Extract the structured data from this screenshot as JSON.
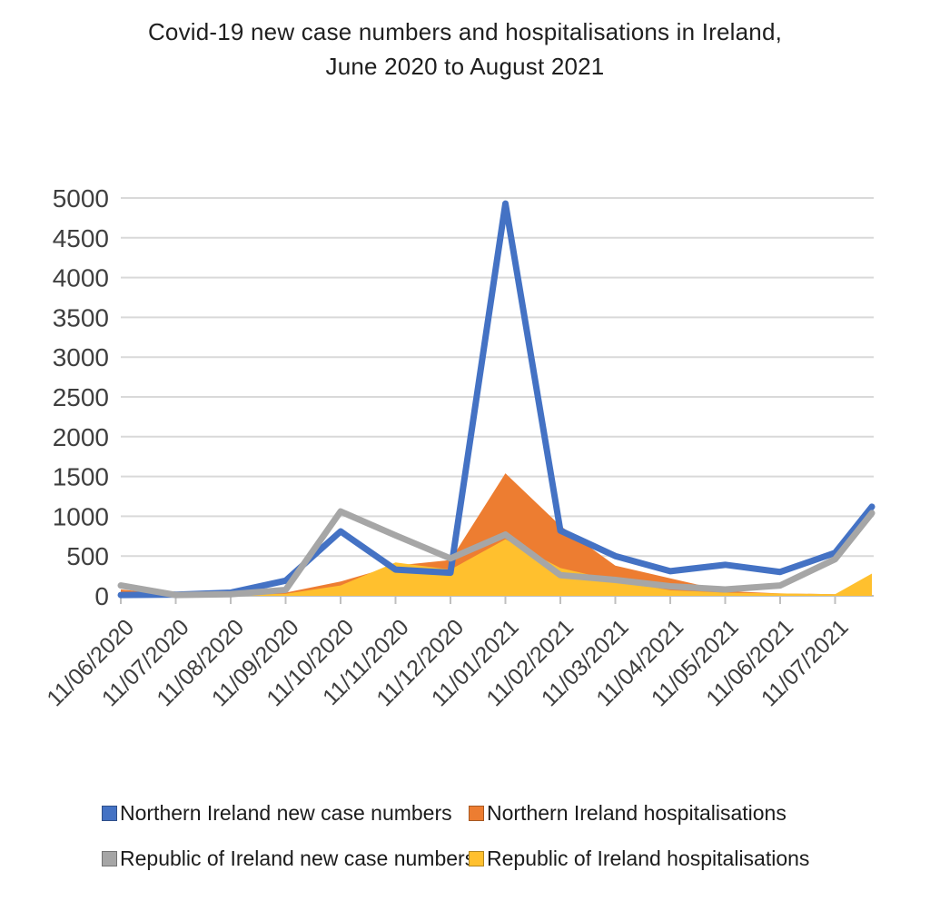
{
  "title": {
    "line1": "Covid-19 new case numbers and hospitalisations in Ireland,",
    "line2": "June 2020 to August 2021"
  },
  "legend": {
    "items": [
      {
        "label": "Northern Ireland new case numbers",
        "color": "#4472C4"
      },
      {
        "label": "Northern Ireland hospitalisations",
        "color": "#ED7D31"
      },
      {
        "label": "Republic of Ireland new case numbers",
        "color": "#A6A6A6"
      },
      {
        "label": "Republic of Ireland hospitalisations",
        "color": "#FFC02E"
      }
    ]
  },
  "chart_data": {
    "type": "line",
    "title": "Covid-19 new case numbers and hospitalisations in Ireland, June 2020 to August 2021",
    "xlabel": "",
    "ylabel": "",
    "categories": [
      "11/06/2020",
      "11/07/2020",
      "11/08/2020",
      "11/09/2020",
      "11/10/2020",
      "11/11/2020",
      "11/12/2020",
      "11/01/2021",
      "11/02/2021",
      "11/03/2021",
      "11/04/2021",
      "11/05/2021",
      "11/06/2021",
      "11/07/2021"
    ],
    "x_month_index": [
      0,
      1,
      2,
      3,
      4,
      5,
      6,
      7,
      8,
      9,
      10,
      11,
      12,
      13,
      13.67
    ],
    "note": "series contain one final unlabeled data point extending about two-thirds of a month beyond the last axis tick (early August 2021)",
    "series": [
      {
        "name": "Northern Ireland hospitalisations",
        "render": "area",
        "color": "#ED7D31",
        "values": [
          80,
          10,
          10,
          40,
          180,
          380,
          450,
          1540,
          880,
          380,
          220,
          60,
          30,
          20,
          20
        ]
      },
      {
        "name": "Republic of Ireland hospitalisations",
        "render": "area",
        "color": "#FFC02E",
        "values": [
          30,
          5,
          10,
          25,
          130,
          420,
          330,
          710,
          350,
          190,
          70,
          40,
          30,
          20,
          280
        ]
      },
      {
        "name": "Northern Ireland new case numbers",
        "render": "line",
        "color": "#4472C4",
        "values": [
          10,
          15,
          40,
          190,
          810,
          330,
          290,
          4930,
          820,
          500,
          310,
          390,
          300,
          540,
          1120
        ]
      },
      {
        "name": "Republic of Ireland new case numbers",
        "render": "line",
        "color": "#A6A6A6",
        "values": [
          130,
          10,
          20,
          75,
          1060,
          760,
          470,
          770,
          260,
          200,
          120,
          80,
          130,
          460,
          1040
        ]
      }
    ],
    "ylim": [
      0,
      5000
    ],
    "ytick_step": 500,
    "yticks": [
      "0",
      "500",
      "1000",
      "1500",
      "2000",
      "2500",
      "3000",
      "3500",
      "4000",
      "4500",
      "5000"
    ],
    "grid": true,
    "legend_position": "bottom"
  },
  "colors": {
    "gridline": "#D9D9D9",
    "axis_tick": "#BFBFBF",
    "tick_label": "#3F3F3F",
    "title_text": "#1F1F1F",
    "background": "#FFFFFF"
  }
}
